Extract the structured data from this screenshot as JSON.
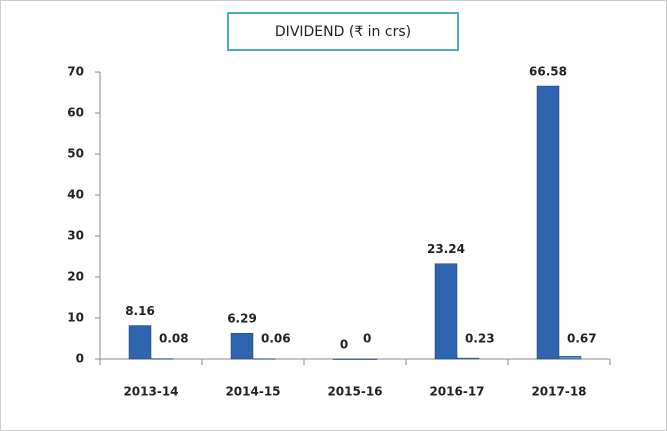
{
  "chart_data": {
    "type": "bar",
    "title": "DIVIDEND (₹  in crs)",
    "categories": [
      "2013-14",
      "2014-15",
      "2015-16",
      "2016-17",
      "2017-18"
    ],
    "series": [
      {
        "color": "#2f64ae",
        "values": [
          8.16,
          6.29,
          0,
          23.24,
          66.58
        ]
      },
      {
        "color": "#5b8fd0",
        "values": [
          0.08,
          0.06,
          0,
          0.23,
          0.67
        ]
      }
    ],
    "ylim": [
      0,
      70
    ],
    "yticks": [
      0,
      10,
      20,
      30,
      40,
      50,
      60,
      70
    ],
    "grid": false
  }
}
